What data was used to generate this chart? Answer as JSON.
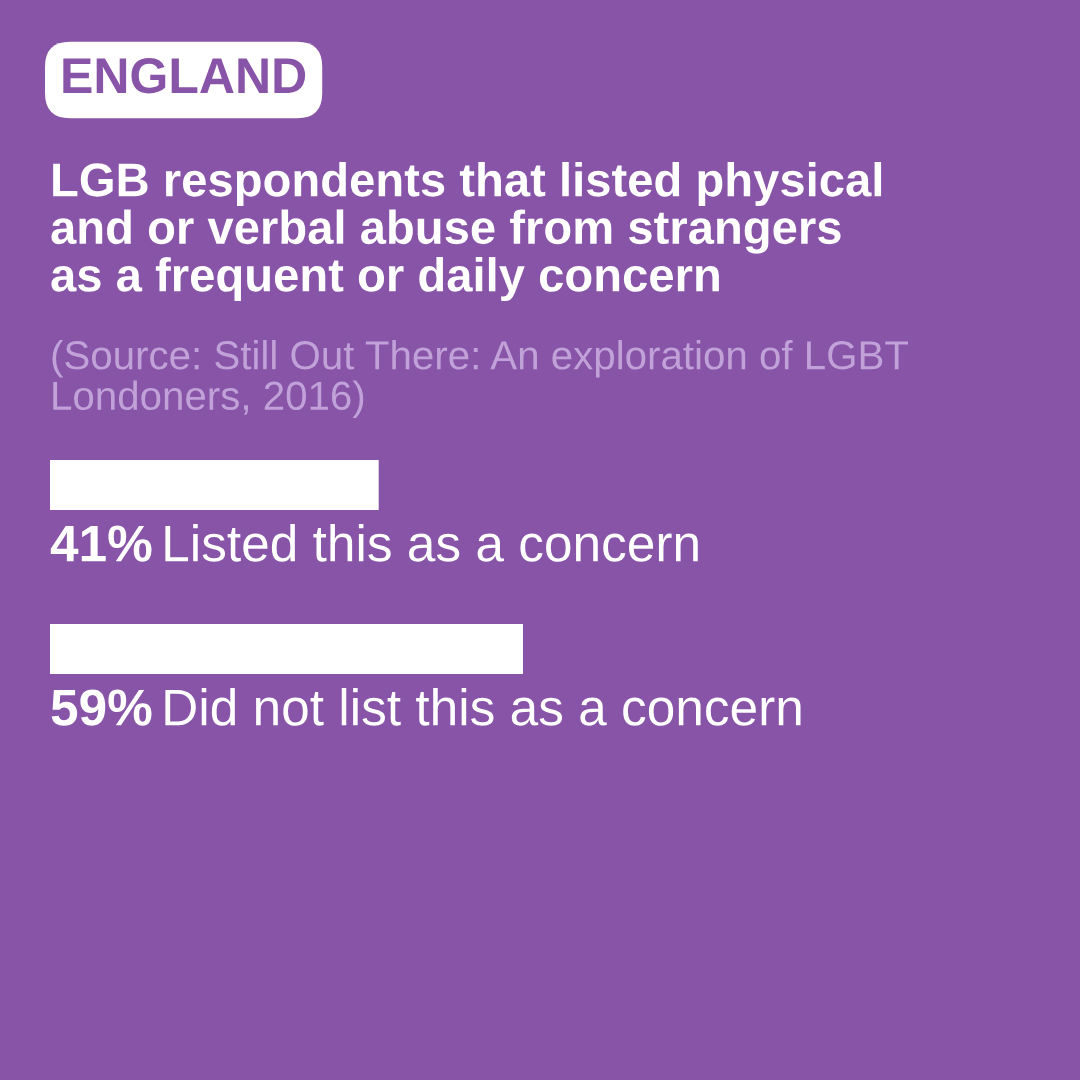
{
  "chart_data": {
    "type": "bar",
    "orientation": "horizontal",
    "title": "LGB respondents that listed physical and or verbal abuse from strangers as a frequent or daily concern",
    "annotations": [
      "ENGLAND",
      "(Source: Still Out There: An exploration of LGBT Londoners, 2016)"
    ],
    "categories": [
      "Listed this as a concern",
      "Did not list this as a concern"
    ],
    "values": [
      41,
      59
    ],
    "value_labels": [
      "41%",
      "59%"
    ],
    "color": "#ffffff",
    "tick_labels": false
  }
}
